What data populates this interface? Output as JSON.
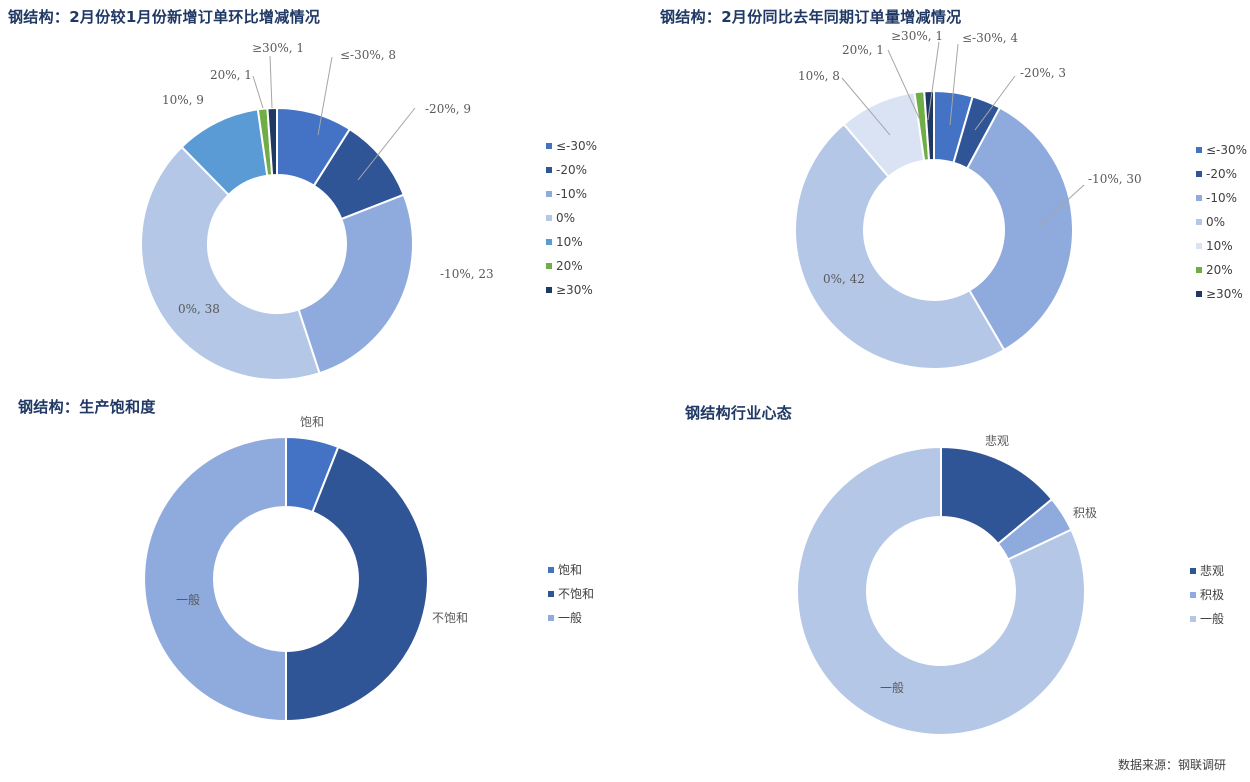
{
  "source": "数据来源：钢联调研",
  "colors": {
    "le_neg30": "#4472c4",
    "neg20": "#2f5597",
    "neg10": "#8faadc",
    "zero": "#b4c7e7",
    "pos10": "#5b9bd5",
    "pos20": "#70ad47",
    "ge30": "#203864",
    "bao_he": "#4472c4",
    "bu_bao_he": "#2f5597",
    "yi_ban": "#8faadc",
    "bei_guan": "#2f5597",
    "ji_ji": "#8faadc",
    "yi_ban_light": "#b4c7e7"
  },
  "chart_data": [
    {
      "type": "pie",
      "title": "钢结构：2月份较1月份新增订单环比增减情况",
      "categories": [
        "≤-30%",
        "-20%",
        "-10%",
        "0%",
        "10%",
        "20%",
        "≥30%"
      ],
      "values": [
        8,
        9,
        23,
        38,
        9,
        1,
        1
      ],
      "data_labels": [
        "≤-30%, 8",
        "-20%, 9",
        "-10%, 23",
        "0%, 38",
        "10%, 9",
        "20%, 1",
        "≥30%, 1"
      ],
      "legend": [
        "≤-30%",
        "-20%",
        "-10%",
        "0%",
        "10%",
        "20%",
        "≥30%"
      ],
      "legend_position": "right"
    },
    {
      "type": "pie",
      "title": "钢结构：2月份同比去年同期订单量增减情况",
      "categories": [
        "≤-30%",
        "-20%",
        "-10%",
        "0%",
        "10%",
        "20%",
        "≥30%"
      ],
      "values": [
        4,
        3,
        30,
        42,
        8,
        1,
        1
      ],
      "data_labels": [
        "≤-30%, 4",
        "-20%, 3",
        "-10%, 30",
        "0%, 42",
        "10%, 8",
        "20%, 1",
        "≥30%, 1"
      ],
      "legend": [
        "≤-30%",
        "-20%",
        "-10%",
        "0%",
        "10%",
        "20%",
        "≥30%"
      ],
      "legend_position": "right"
    },
    {
      "type": "pie",
      "title": "钢结构：生产饱和度",
      "categories": [
        "饱和",
        "不饱和",
        "一般"
      ],
      "values": [
        6,
        44,
        50
      ],
      "data_labels": [
        "饱和",
        "不饱和",
        "一般"
      ],
      "legend": [
        "饱和",
        "不饱和",
        "一般"
      ],
      "legend_position": "right"
    },
    {
      "type": "pie",
      "title": "钢结构行业心态",
      "categories": [
        "悲观",
        "积极",
        "一般"
      ],
      "values": [
        14,
        4,
        82
      ],
      "data_labels": [
        "悲观",
        "积极",
        "一般"
      ],
      "legend": [
        "悲观",
        "积极",
        "一般"
      ],
      "legend_position": "right"
    }
  ]
}
